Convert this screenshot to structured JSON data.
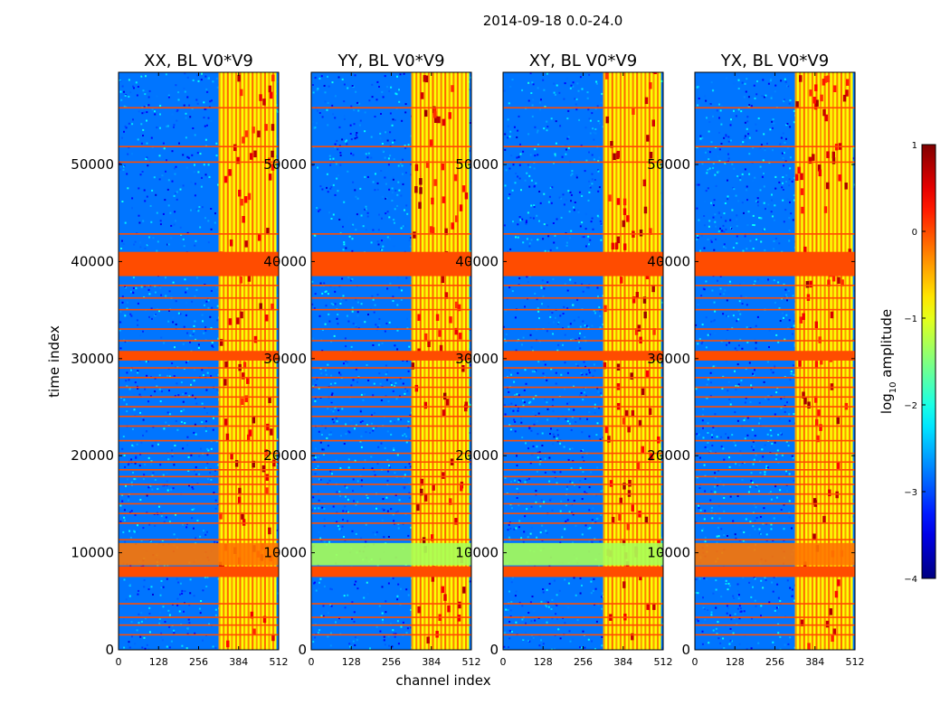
{
  "chart_data": {
    "type": "heatmap",
    "title": "2014-09-18 0.0-24.0",
    "xlabel": "channel index",
    "ylabel": "time index",
    "xlim": [
      0,
      512
    ],
    "ylim": [
      0,
      59500
    ],
    "x_ticks": [
      0,
      128,
      256,
      384,
      512
    ],
    "y_ticks": [
      0,
      10000,
      20000,
      30000,
      40000,
      50000
    ],
    "panels": [
      {
        "id": "xx",
        "title": "XX, BL V0*V9",
        "x_ticks": [
          "0",
          "128",
          "256",
          "384",
          "512"
        ],
        "y_ticks": [
          "0",
          "10000",
          "20000",
          "30000",
          "40000",
          "50000"
        ]
      },
      {
        "id": "yy",
        "title": "YY, BL V0*V9",
        "x_ticks": [
          "0",
          "128",
          "256",
          "384",
          "512"
        ],
        "y_ticks": [
          "0",
          "10000",
          "20000",
          "30000",
          "40000",
          "50000"
        ]
      },
      {
        "id": "xy",
        "title": "XY, BL V0*V9",
        "x_ticks": [
          "0",
          "128",
          "256",
          "384",
          "512"
        ],
        "y_ticks": [
          "0",
          "10000",
          "20000",
          "30000",
          "40000",
          "50000"
        ]
      },
      {
        "id": "yx",
        "title": "YX, BL V0*V9",
        "x_ticks": [
          "0",
          "128",
          "256",
          "384",
          "512"
        ],
        "y_ticks": [
          "0",
          "10000",
          "20000",
          "30000",
          "40000",
          "50000"
        ]
      }
    ],
    "colorbar": {
      "label": "log10 amplitude",
      "label_main": "log",
      "label_sub": "10",
      "label_rest": " amplitude",
      "range": [
        -4,
        1
      ],
      "ticks": [
        -4,
        -3,
        -2,
        -1,
        0,
        1
      ],
      "tick_labels": [
        "−4",
        "−3",
        "−2",
        "−1",
        "0",
        "1"
      ]
    },
    "features": {
      "background_level": -2.8,
      "rfi_band_channels": [
        [
          320,
          505
        ]
      ],
      "flagged_time_ranges": [
        [
          7500,
          8600
        ],
        [
          29800,
          30800
        ],
        [
          38500,
          41000
        ]
      ],
      "flag_value": 0,
      "thin_flag_rows": [
        1500,
        2500,
        3300,
        4700,
        11300,
        13000,
        14000,
        15000,
        16000,
        17000,
        17800,
        18500,
        19300,
        20200,
        21500,
        23000,
        24000,
        25000,
        26000,
        27000,
        28000,
        29000,
        31800,
        33000,
        35000,
        36200,
        37500,
        42800,
        50200,
        51800,
        55800
      ],
      "bright_band_xx": [
        8700,
        11000
      ]
    }
  }
}
